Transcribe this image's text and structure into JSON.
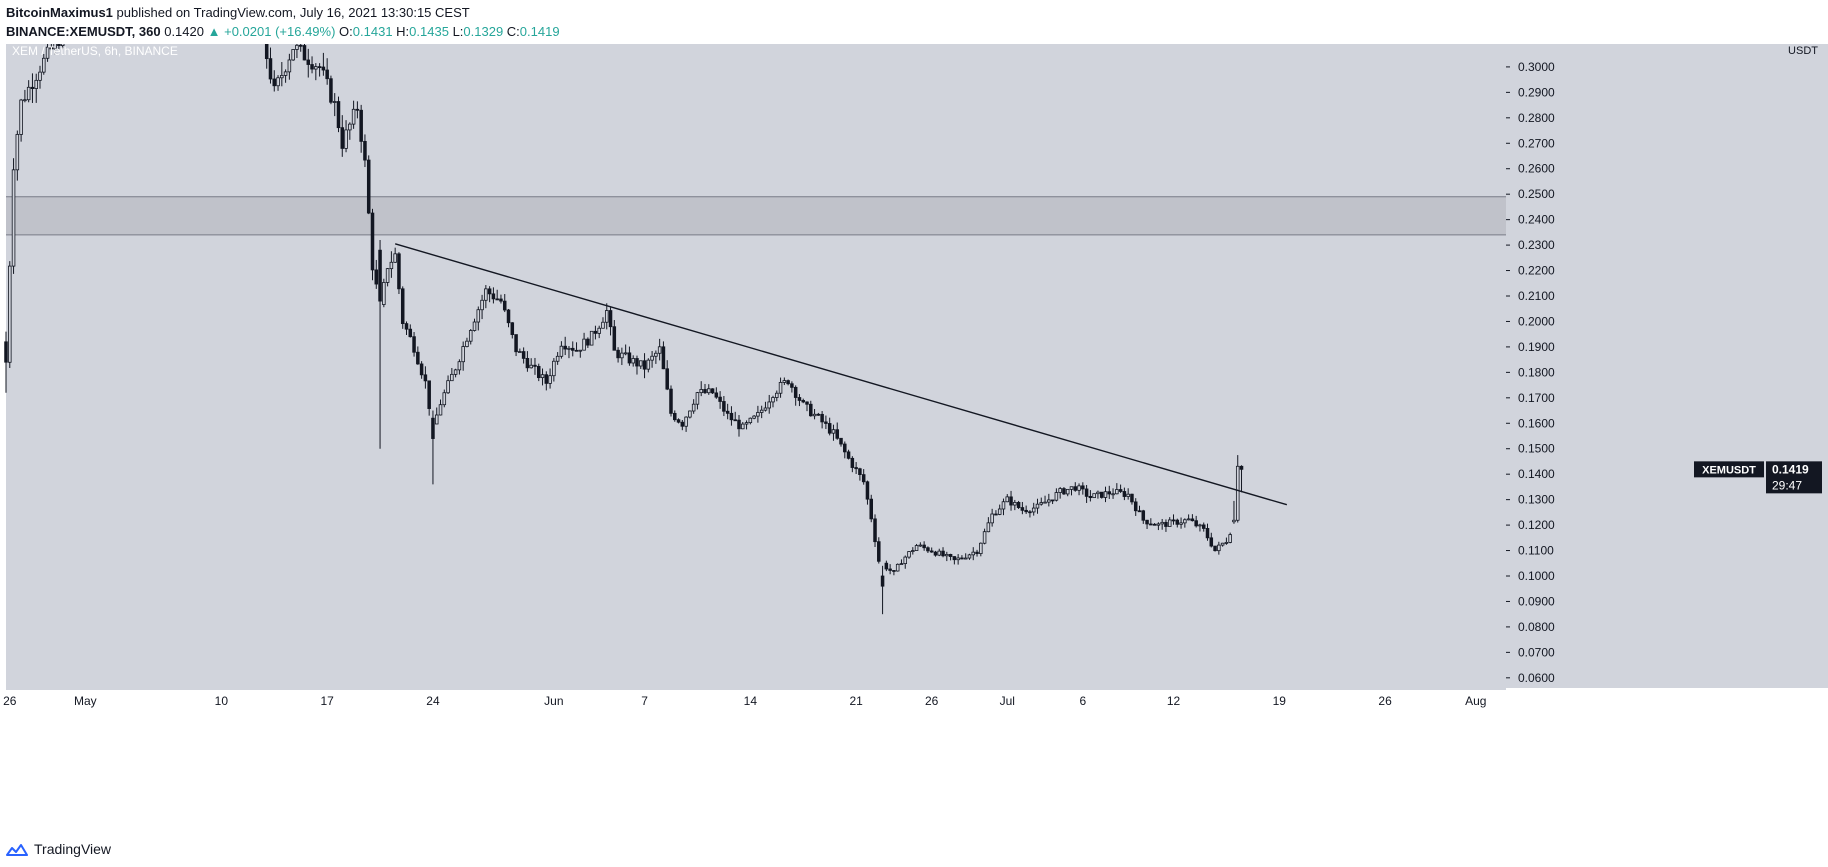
{
  "header": {
    "author": "BitcoinMaximus1",
    "published": "published on TradingView.com, July 16, 2021 13:30:15 CEST",
    "symbol": "BINANCE:XEMUSDT, 360",
    "last": "0.1420",
    "change_arrow": "▲",
    "change": "+0.0201 (+16.49%)",
    "o_label": "O:",
    "o": "0.1431",
    "h_label": "H:",
    "h": "0.1435",
    "l_label": "L:",
    "l": "0.1329",
    "c_label": "C:",
    "c": "0.1419"
  },
  "footer": {
    "brand": "TradingView",
    "logo_icon": "tradingview-cloud-icon"
  },
  "colors": {
    "background": "#d1d4dc",
    "zone": "#c0c2ca",
    "candle": "#131722",
    "axis_bg": "#d1d4dc",
    "axis_text": "#131722",
    "badge_bg": "#131722",
    "badge_text": "#ffffff",
    "brand_blue": "#2962ff"
  },
  "chart_data": {
    "type": "candlestick",
    "title": "XEM / TetherUS, 6h, BINANCE",
    "currency": "USDT",
    "ylim": [
      0.056,
      0.309
    ],
    "y_ticks": [
      "0.3000",
      "0.2900",
      "0.2800",
      "0.2700",
      "0.2600",
      "0.2500",
      "0.2400",
      "0.2300",
      "0.2200",
      "0.2100",
      "0.2000",
      "0.1900",
      "0.1800",
      "0.1700",
      "0.1600",
      "0.1500",
      "0.1400",
      "0.1300",
      "0.1200",
      "0.1100",
      "0.1000",
      "0.0900",
      "0.0800",
      "0.0700",
      "0.0600"
    ],
    "x_ticks": [
      {
        "label": "26",
        "date": "2021-04-26"
      },
      {
        "label": "May",
        "date": "2021-05-01"
      },
      {
        "label": "10",
        "date": "2021-05-10"
      },
      {
        "label": "17",
        "date": "2021-05-17"
      },
      {
        "label": "24",
        "date": "2021-05-24"
      },
      {
        "label": "Jun",
        "date": "2021-06-01"
      },
      {
        "label": "7",
        "date": "2021-06-07"
      },
      {
        "label": "14",
        "date": "2021-06-14"
      },
      {
        "label": "21",
        "date": "2021-06-21"
      },
      {
        "label": "26",
        "date": "2021-06-26"
      },
      {
        "label": "Jul",
        "date": "2021-07-01"
      },
      {
        "label": "6",
        "date": "2021-07-06"
      },
      {
        "label": "12",
        "date": "2021-07-12"
      },
      {
        "label": "19",
        "date": "2021-07-19"
      },
      {
        "label": "26",
        "date": "2021-07-26"
      },
      {
        "label": "Aug",
        "date": "2021-08-01"
      }
    ],
    "x_start": "2021-04-25T18:00",
    "x_end": "2021-08-03T00:00",
    "resistance_zone": [
      0.234,
      0.249
    ],
    "trendline": {
      "start": {
        "date": "2021-05-21T12:00",
        "price": 0.2305
      },
      "end": {
        "date": "2021-07-19T12:00",
        "price": 0.128
      }
    },
    "last_price": {
      "label": "XEMUSDT",
      "value": "0.1419",
      "countdown": "29:47"
    },
    "path": [
      {
        "date": "2021-04-25T18:00",
        "price": 0.184
      },
      {
        "date": "2021-04-26T06:00",
        "price": 0.262
      },
      {
        "date": "2021-04-26T18:00",
        "price": 0.286
      },
      {
        "date": "2021-04-28T00:00",
        "price": 0.3
      },
      {
        "date": "2021-04-30T00:00",
        "price": 0.318
      },
      {
        "date": "2021-05-04T00:00",
        "price": 0.325
      },
      {
        "date": "2021-05-08T00:00",
        "price": 0.322
      },
      {
        "date": "2021-05-12T12:00",
        "price": 0.318
      },
      {
        "date": "2021-05-13T12:00",
        "price": 0.29
      },
      {
        "date": "2021-05-14T18:00",
        "price": 0.308
      },
      {
        "date": "2021-05-16T12:00",
        "price": 0.3
      },
      {
        "date": "2021-05-17T12:00",
        "price": 0.285
      },
      {
        "date": "2021-05-18T00:00",
        "price": 0.27
      },
      {
        "date": "2021-05-19T00:00",
        "price": 0.284
      },
      {
        "date": "2021-05-19T12:00",
        "price": 0.262
      },
      {
        "date": "2021-05-20T00:00",
        "price": 0.222
      },
      {
        "date": "2021-05-20T12:00",
        "price": 0.205
      },
      {
        "date": "2021-05-21T00:00",
        "price": 0.222
      },
      {
        "date": "2021-05-21T12:00",
        "price": 0.226
      },
      {
        "date": "2021-05-22T00:00",
        "price": 0.2
      },
      {
        "date": "2021-05-22T18:00",
        "price": 0.19
      },
      {
        "date": "2021-05-23T12:00",
        "price": 0.176
      },
      {
        "date": "2021-05-24T00:00",
        "price": 0.158
      },
      {
        "date": "2021-05-24T12:00",
        "price": 0.168
      },
      {
        "date": "2021-05-25T12:00",
        "price": 0.182
      },
      {
        "date": "2021-05-26T12:00",
        "price": 0.198
      },
      {
        "date": "2021-05-27T12:00",
        "price": 0.212
      },
      {
        "date": "2021-05-28T12:00",
        "price": 0.208
      },
      {
        "date": "2021-05-29T12:00",
        "price": 0.189
      },
      {
        "date": "2021-05-30T12:00",
        "price": 0.182
      },
      {
        "date": "2021-05-31T12:00",
        "price": 0.176
      },
      {
        "date": "2021-06-01T12:00",
        "price": 0.192
      },
      {
        "date": "2021-06-02T12:00",
        "price": 0.189
      },
      {
        "date": "2021-06-03T12:00",
        "price": 0.194
      },
      {
        "date": "2021-06-04T12:00",
        "price": 0.204
      },
      {
        "date": "2021-06-05T00:00",
        "price": 0.188
      },
      {
        "date": "2021-06-06T00:00",
        "price": 0.185
      },
      {
        "date": "2021-06-07T00:00",
        "price": 0.182
      },
      {
        "date": "2021-06-08T00:00",
        "price": 0.189
      },
      {
        "date": "2021-06-08T18:00",
        "price": 0.164
      },
      {
        "date": "2021-06-09T12:00",
        "price": 0.16
      },
      {
        "date": "2021-06-10T12:00",
        "price": 0.172
      },
      {
        "date": "2021-06-11T12:00",
        "price": 0.172
      },
      {
        "date": "2021-06-12T12:00",
        "price": 0.163
      },
      {
        "date": "2021-06-13T12:00",
        "price": 0.158
      },
      {
        "date": "2021-06-14T12:00",
        "price": 0.163
      },
      {
        "date": "2021-06-15T12:00",
        "price": 0.172
      },
      {
        "date": "2021-06-16T12:00",
        "price": 0.177
      },
      {
        "date": "2021-06-17T12:00",
        "price": 0.167
      },
      {
        "date": "2021-06-18T12:00",
        "price": 0.162
      },
      {
        "date": "2021-06-19T12:00",
        "price": 0.156
      },
      {
        "date": "2021-06-20T12:00",
        "price": 0.146
      },
      {
        "date": "2021-06-21T12:00",
        "price": 0.137
      },
      {
        "date": "2021-06-22T00:00",
        "price": 0.123
      },
      {
        "date": "2021-06-22T12:00",
        "price": 0.106
      },
      {
        "date": "2021-06-23T12:00",
        "price": 0.101
      },
      {
        "date": "2021-06-24T00:00",
        "price": 0.106
      },
      {
        "date": "2021-06-25T00:00",
        "price": 0.112
      },
      {
        "date": "2021-06-26T00:00",
        "price": 0.11
      },
      {
        "date": "2021-06-27T12:00",
        "price": 0.106
      },
      {
        "date": "2021-06-29T00:00",
        "price": 0.11
      },
      {
        "date": "2021-06-30T00:00",
        "price": 0.124
      },
      {
        "date": "2021-07-01T00:00",
        "price": 0.13
      },
      {
        "date": "2021-07-02T00:00",
        "price": 0.126
      },
      {
        "date": "2021-07-03T00:00",
        "price": 0.127
      },
      {
        "date": "2021-07-04T12:00",
        "price": 0.133
      },
      {
        "date": "2021-07-05T12:00",
        "price": 0.135
      },
      {
        "date": "2021-07-06T12:00",
        "price": 0.131
      },
      {
        "date": "2021-07-08T00:00",
        "price": 0.133
      },
      {
        "date": "2021-07-09T00:00",
        "price": 0.132
      },
      {
        "date": "2021-07-10T00:00",
        "price": 0.122
      },
      {
        "date": "2021-07-11T00:00",
        "price": 0.12
      },
      {
        "date": "2021-07-12T00:00",
        "price": 0.121
      },
      {
        "date": "2021-07-13T00:00",
        "price": 0.122
      },
      {
        "date": "2021-07-14T00:00",
        "price": 0.118
      },
      {
        "date": "2021-07-14T18:00",
        "price": 0.11
      },
      {
        "date": "2021-07-15T12:00",
        "price": 0.114
      },
      {
        "date": "2021-07-16T00:00",
        "price": 0.121
      },
      {
        "date": "2021-07-16T06:00",
        "price": 0.142
      }
    ],
    "anchors": [
      {
        "date": "2021-04-25T18:00",
        "o": 0.192,
        "h": 0.196,
        "l": 0.172,
        "c": 0.184
      },
      {
        "date": "2021-05-20T12:00",
        "o": 0.228,
        "h": 0.232,
        "l": 0.15,
        "c": 0.208
      },
      {
        "date": "2021-05-24T00:00",
        "o": 0.162,
        "h": 0.165,
        "l": 0.136,
        "c": 0.154
      },
      {
        "date": "2021-06-22T18:00",
        "o": 0.1,
        "h": 0.104,
        "l": 0.085,
        "c": 0.096
      },
      {
        "date": "2021-07-16T00:00",
        "o": 0.1213,
        "h": 0.1295,
        "l": 0.1205,
        "c": 0.1219
      },
      {
        "date": "2021-07-16T06:00",
        "o": 0.1219,
        "h": 0.1475,
        "l": 0.121,
        "c": 0.1431
      },
      {
        "date": "2021-07-16T12:00",
        "o": 0.1431,
        "h": 0.1435,
        "l": 0.1329,
        "c": 0.1419
      }
    ]
  }
}
